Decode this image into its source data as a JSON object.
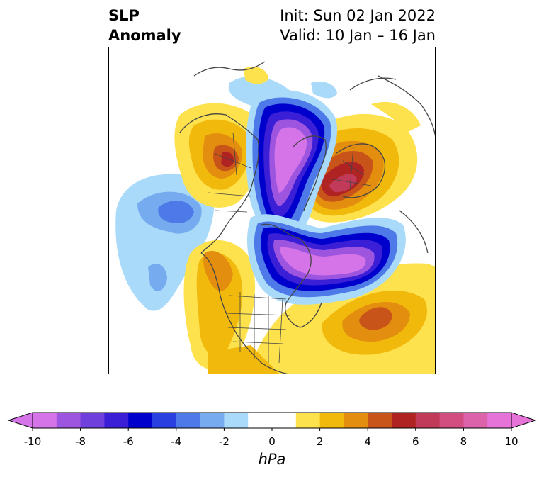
{
  "header": {
    "variable": "SLP",
    "variable_type": "Anomaly",
    "init": "Init: Sun 02 Jan 2022",
    "valid": "Valid: 10 Jan – 16 Jan"
  },
  "map": {
    "region": "North America / Arctic (polar stereographic)",
    "features": [
      "coastlines",
      "country borders",
      "US state borders",
      "Canadian province borders"
    ],
    "anomaly_centers": [
      {
        "name": "Alaska / Bering high",
        "sign": "positive",
        "peak_hpa": 6
      },
      {
        "name": "Siberia / Scandinavia high",
        "sign": "positive",
        "peak_hpa": 6
      },
      {
        "name": "Mid-Atlantic high",
        "sign": "positive",
        "peak_hpa": 4
      },
      {
        "name": "Western US high",
        "sign": "positive",
        "peak_hpa": 3
      },
      {
        "name": "Arctic low",
        "sign": "negative",
        "peak_hpa": -10
      },
      {
        "name": "Hudson Bay / Greenland low",
        "sign": "negative",
        "peak_hpa": -10
      },
      {
        "name": "Gulf of Alaska low",
        "sign": "negative",
        "peak_hpa": -4
      }
    ]
  },
  "colorbar": {
    "unit": "hPa",
    "min": -10,
    "max": 10,
    "step": 1,
    "tick_labels": [
      "-10",
      "-8",
      "-6",
      "-4",
      "-2",
      "0",
      "2",
      "4",
      "6",
      "8",
      "10"
    ],
    "extend": "both",
    "colors": [
      "#d474e8",
      "#9d55df",
      "#7040dc",
      "#3a1fd6",
      "#0000cc",
      "#2a3fdf",
      "#4d7ae8",
      "#76acef",
      "#a9dafa",
      "#ffffff",
      "#ffffff",
      "#fde24e",
      "#f2b90d",
      "#e38e0f",
      "#c8541a",
      "#b02323",
      "#c23a5a",
      "#d24d80",
      "#dc62aa",
      "#e673d8"
    ]
  }
}
